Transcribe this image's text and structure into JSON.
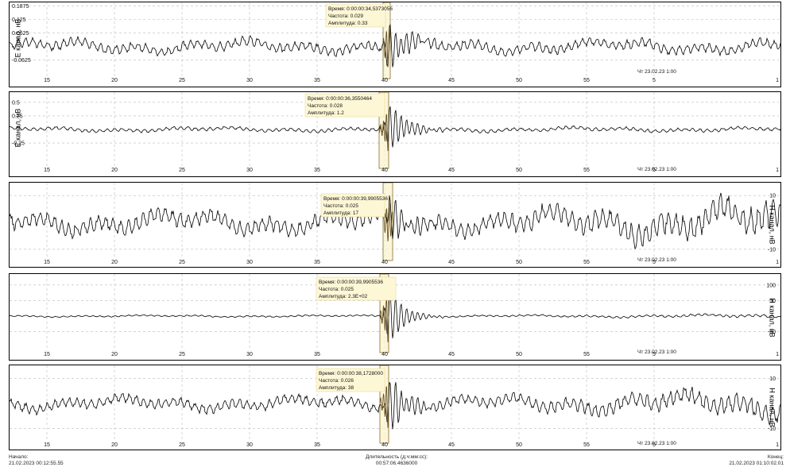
{
  "chart_data": [
    {
      "type": "line",
      "panel": 1,
      "ylabel": "Е канал, нВ",
      "yaxis_side": "left",
      "yticks": [
        "0.1875",
        "0.125",
        "0.0625",
        "-0.0625"
      ],
      "ytick_values": [
        0.1875,
        0.125,
        0.0625,
        -0.0625
      ],
      "ylim": [
        -0.12,
        0.19
      ],
      "xtick_labels": [
        "15",
        "20",
        "25",
        "30",
        "35",
        "40",
        "45",
        "50",
        "55",
        "5",
        "1"
      ],
      "date_label": "Чт 23.02.23 1:00",
      "tooltip": {
        "time": "Время: 0:00:00:34,5373056",
        "freq": "Частота: 0.029",
        "amp": "Амплитуда: 0.33"
      },
      "series": [
        {
          "noise": 0.025,
          "burst": 0.11,
          "base": 0.03
        }
      ]
    },
    {
      "type": "line",
      "panel": 2,
      "ylabel": "Е канал, нВ",
      "yaxis_side": "left",
      "yticks": [
        "0.5",
        "0.25",
        "-0.25"
      ],
      "ytick_values": [
        0.5,
        0.25,
        -0.25
      ],
      "ylim": [
        -0.6,
        0.6
      ],
      "xtick_labels": [
        "15",
        "20",
        "25",
        "30",
        "35",
        "40",
        "45",
        "50",
        "55",
        "5",
        "1"
      ],
      "date_label": "Чт 23.02.23 1:00",
      "tooltip": {
        "time": "Время: 0:00:00:36,3550464",
        "freq": "Частота: 0.028",
        "amp": "Амплитуда: 1.2"
      },
      "series": [
        {
          "noise": 0.035,
          "burst": 0.45,
          "base": 0.05
        }
      ]
    },
    {
      "type": "line",
      "panel": 3,
      "ylabel": "Н канал, нВ",
      "yaxis_side": "right",
      "yticks": [
        "10",
        "-10"
      ],
      "ytick_values": [
        10,
        -10
      ],
      "ylim": [
        -13,
        13
      ],
      "xtick_labels": [
        "15",
        "20",
        "25",
        "30",
        "35",
        "40",
        "45",
        "50",
        "55",
        "5",
        "1"
      ],
      "date_label": "Чт 23.02.23 1:00",
      "tooltip": {
        "time": "Время: 0:00:00:39,9905536",
        "freq": "Частота: 0.025",
        "amp": "Амплитуда: 17"
      },
      "series": [
        {
          "noise": 3.2,
          "burst": 8,
          "base": 0
        }
      ]
    },
    {
      "type": "line",
      "panel": 4,
      "ylabel": "Н канал, нВ",
      "yaxis_side": "right",
      "yticks": [
        "100",
        "50",
        "-50"
      ],
      "ytick_values": [
        100,
        50,
        -50
      ],
      "ylim": [
        -120,
        120
      ],
      "xtick_labels": [
        "15",
        "20",
        "25",
        "30",
        "35",
        "40",
        "45",
        "50",
        "55",
        "5",
        "1"
      ],
      "date_label": "Чт 23.02.23 1:00",
      "tooltip": {
        "time": "Время: 0:00:00:39,9905536",
        "freq": "Частота: 0.025",
        "amp": "Амплитуда: 2.3Е+02"
      },
      "series": [
        {
          "noise": 2.5,
          "burst": 95,
          "base": 0
        }
      ]
    },
    {
      "type": "line",
      "panel": 5,
      "ylabel": "Н канал, нВ",
      "yaxis_side": "right",
      "yticks": [
        "10",
        "-10"
      ],
      "ytick_values": [
        10,
        -10
      ],
      "ylim": [
        -14,
        14
      ],
      "xtick_labels": [
        "15",
        "20",
        "25",
        "30",
        "35",
        "40",
        "45",
        "50",
        "55",
        "5",
        "1"
      ],
      "date_label": "Чт 23.02.23 1:00",
      "tooltip": {
        "time": "Время: 0:00:00:38,1728000",
        "freq": "Частота: 0.026",
        "amp": "Амплитуда: 38"
      },
      "series": [
        {
          "noise": 2.2,
          "burst": 11,
          "base": 0
        }
      ]
    }
  ],
  "footer": {
    "start_label": "Начало:",
    "start_value": "21.02.2023 00:12:55.55",
    "duration_label": "Длительность (д:ч:мм:сс):",
    "duration_value": "00:57:06.4636000",
    "end_label": "Конец:",
    "end_value": "21.02.2023 01:10:02.01"
  },
  "colors": {
    "trace": "#000000",
    "grid": "#bbbbbb",
    "highlight_fill": "#fbf4cc",
    "highlight_stroke": "#8a6d2a",
    "burst": "#6b5426"
  }
}
